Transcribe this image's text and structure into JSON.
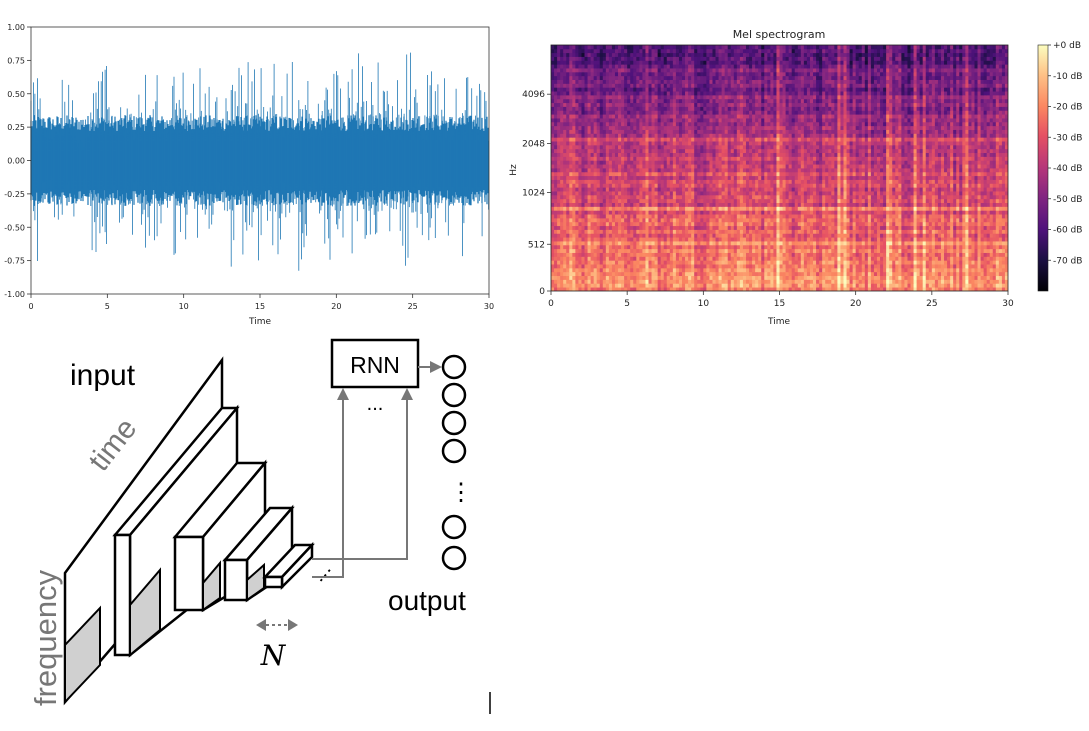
{
  "chart_data": [
    {
      "type": "line",
      "title": "",
      "xlabel": "Time",
      "ylabel": "",
      "xlim": [
        0,
        30
      ],
      "ylim": [
        -1.0,
        1.0
      ],
      "x_ticks": [
        0,
        5,
        10,
        15,
        20,
        25,
        30
      ],
      "x_tick_labels": [
        "0",
        "5",
        "10",
        "15",
        "20",
        "25",
        "30"
      ],
      "y_ticks": [
        1.0,
        0.75,
        0.5,
        0.25,
        0.0,
        -0.25,
        -0.5,
        -0.75,
        -1.0
      ],
      "y_tick_labels": [
        "1.00",
        "0.75",
        "0.50",
        "0.25",
        "0.00",
        "-0.25",
        "-0.50",
        "-0.75",
        "-1.00"
      ],
      "grid": false,
      "series": [
        {
          "color": "#1f77b4",
          "x": [
            0,
            0.5,
            1,
            1.5,
            2,
            2.5,
            3,
            3.5,
            4,
            4.5,
            5,
            5.5,
            6,
            6.5,
            7,
            7.5,
            8,
            8.5,
            9,
            9.5,
            10,
            10.5,
            11,
            11.5,
            12,
            12.5,
            13,
            13.5,
            14,
            14.5,
            15,
            15.5,
            16,
            16.5,
            17,
            17.5,
            18,
            18.5,
            19,
            19.5,
            20,
            20.5,
            21,
            21.5,
            22,
            22.5,
            23,
            23.5,
            24,
            24.5,
            25,
            25.5,
            26,
            26.5,
            27,
            27.5,
            28,
            28.5,
            29,
            29.5,
            30
          ],
          "upper": [
            0.62,
            0.82,
            0.45,
            0.4,
            0.6,
            0.65,
            0.3,
            0.25,
            0.7,
            0.85,
            0.75,
            0.6,
            0.8,
            0.55,
            0.6,
            0.88,
            0.6,
            0.7,
            0.55,
            0.75,
            0.72,
            0.65,
            0.75,
            0.7,
            0.6,
            0.55,
            0.8,
            0.7,
            0.85,
            0.75,
            0.82,
            0.7,
            0.75,
            0.65,
            0.78,
            0.8,
            0.7,
            0.6,
            0.6,
            0.85,
            0.75,
            0.6,
            0.7,
            0.9,
            0.8,
            0.85,
            0.7,
            0.75,
            0.6,
            0.8,
            0.85,
            0.6,
            0.7,
            0.75,
            0.65,
            0.55,
            0.78,
            0.7,
            0.55,
            0.7,
            0.35
          ],
          "lower": [
            -0.65,
            -0.85,
            -0.5,
            -0.45,
            -0.6,
            -0.55,
            -0.35,
            -0.3,
            -0.75,
            -0.8,
            -0.7,
            -0.6,
            -0.85,
            -0.6,
            -0.55,
            -0.9,
            -0.65,
            -0.7,
            -0.5,
            -0.8,
            -0.75,
            -0.6,
            -0.8,
            -0.75,
            -0.55,
            -0.6,
            -0.85,
            -0.7,
            -0.8,
            -0.7,
            -0.85,
            -0.65,
            -0.8,
            -0.6,
            -0.75,
            -0.85,
            -0.65,
            -0.55,
            -0.65,
            -0.8,
            -0.7,
            -0.65,
            -0.75,
            -0.92,
            -0.78,
            -0.8,
            -0.75,
            -0.7,
            -0.65,
            -0.8,
            -0.82,
            -0.55,
            -0.75,
            -0.7,
            -0.6,
            -0.6,
            -0.75,
            -0.72,
            -0.5,
            -0.65,
            -0.4
          ]
        }
      ]
    },
    {
      "type": "heatmap",
      "title": "Mel spectrogram",
      "xlabel": "Time",
      "ylabel": "Hz",
      "xlim": [
        0,
        30
      ],
      "x_ticks": [
        0,
        5,
        10,
        15,
        20,
        25,
        30
      ],
      "x_tick_labels": [
        "0",
        "5",
        "10",
        "15",
        "20",
        "25",
        "30"
      ],
      "y_scale": "mel",
      "y_tick_labels": [
        "0",
        "512",
        "1024",
        "2048",
        "4096"
      ],
      "y_tick_fractions": [
        0,
        0.19,
        0.4,
        0.6,
        0.8
      ],
      "colorscale": "magma",
      "colorbar_ticks": [
        "+0 dB",
        "-10 dB",
        "-20 dB",
        "-30 dB",
        "-40 dB",
        "-50 dB",
        "-60 dB",
        "-70 dB"
      ],
      "colorbar_range_db": [
        -80,
        0
      ],
      "mean_db_by_band_low_to_high": [
        -18,
        -20,
        -22,
        -24,
        -25,
        -27,
        -28,
        -30,
        -32,
        -33,
        -35,
        -36,
        -38,
        -40,
        -42,
        -44,
        -46,
        -48,
        -50,
        -52,
        -55,
        -57,
        -58,
        -60
      ],
      "grid": false
    }
  ],
  "diagram": {
    "input_label": "input",
    "time_label": "time",
    "frequency_label": "frequency",
    "rnn_label": "RNN",
    "ellipsis_horizontal": "...",
    "ellipsis_vertical": "⋮",
    "output_label": "output",
    "n_label": "N"
  }
}
